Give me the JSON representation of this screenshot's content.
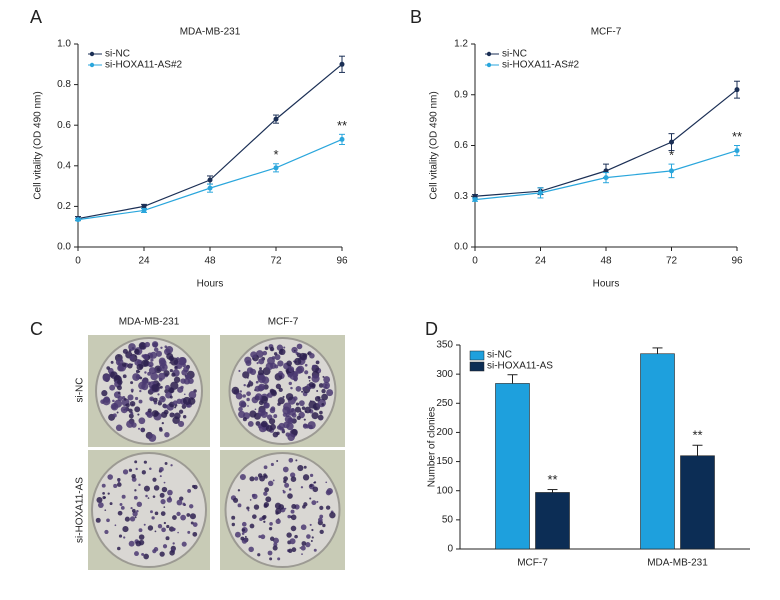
{
  "chart_data": [
    {
      "type": "line",
      "panel_label": "A",
      "title": "MDA-MB-231",
      "xlabel": "Hours",
      "ylabel": "Cell vitality (OD 490 nm)",
      "x": [
        0,
        24,
        48,
        72,
        96
      ],
      "xlim": [
        0,
        96
      ],
      "xticks": [
        0,
        24,
        48,
        72,
        96
      ],
      "ylim": [
        0,
        1
      ],
      "yticks": [
        {
          "value": 0,
          "label": "0.0"
        },
        0.2,
        0.4,
        0.6,
        0.8,
        {
          "value": 1,
          "label": "1.0"
        }
      ],
      "legend": "upper left",
      "series": [
        {
          "name": "si-NC",
          "color": "#1b2f55",
          "values": [
            0.14,
            0.2,
            0.33,
            0.63,
            0.9
          ],
          "errors": [
            0.01,
            0.01,
            0.02,
            0.02,
            0.04
          ]
        },
        {
          "name": "si-HOXA11-AS#2",
          "color": "#2aa6dc",
          "values": [
            0.135,
            0.18,
            0.29,
            0.39,
            0.53
          ],
          "errors": [
            0.005,
            0.01,
            0.02,
            0.02,
            0.025
          ],
          "annotations": [
            null,
            null,
            null,
            "*",
            "**"
          ]
        }
      ]
    },
    {
      "type": "line",
      "panel_label": "B",
      "title": "MCF-7",
      "xlabel": "Hours",
      "ylabel": "Cell vitality (OD 490 nm)",
      "x": [
        0,
        24,
        48,
        72,
        96
      ],
      "xlim": [
        0,
        96
      ],
      "xticks": [
        0,
        24,
        48,
        72,
        96
      ],
      "ylim": [
        0,
        1.2
      ],
      "yticks": [
        {
          "value": 0,
          "label": "0.0"
        },
        0.3,
        0.6,
        0.9,
        1.2
      ],
      "legend": "upper left",
      "series": [
        {
          "name": "si-NC",
          "color": "#1b2f55",
          "values": [
            0.3,
            0.33,
            0.45,
            0.62,
            0.93
          ],
          "errors": [
            0.01,
            0.02,
            0.04,
            0.05,
            0.05
          ]
        },
        {
          "name": "si-HOXA11-AS#2",
          "color": "#2aa6dc",
          "values": [
            0.28,
            0.32,
            0.41,
            0.45,
            0.57
          ],
          "errors": [
            0.01,
            0.03,
            0.03,
            0.04,
            0.03
          ],
          "annotations": [
            null,
            null,
            null,
            "*",
            "**"
          ]
        }
      ]
    },
    {
      "type": "bar",
      "panel_label": "D",
      "ylabel": "Number of clonies",
      "categories": [
        "MCF-7",
        "MDA-MB-231"
      ],
      "ylim": [
        0,
        350
      ],
      "yticks": [
        0,
        50,
        100,
        150,
        200,
        250,
        300,
        350
      ],
      "legend": "upper left",
      "series": [
        {
          "name": "si-NC",
          "color": "#1ea0dd",
          "values": [
            284,
            335
          ],
          "errors": [
            15,
            10
          ]
        },
        {
          "name": "si-HOXA11-AS",
          "color": "#0c2d55",
          "values": [
            97,
            160
          ],
          "errors": [
            5,
            18
          ],
          "annotations": [
            "**",
            "**"
          ]
        }
      ]
    }
  ],
  "panel_c": {
    "panel_label": "C",
    "columns": [
      "MDA-MB-231",
      "MCF-7"
    ],
    "rows": [
      "si-NC",
      "si-HOXA11-AS"
    ]
  }
}
